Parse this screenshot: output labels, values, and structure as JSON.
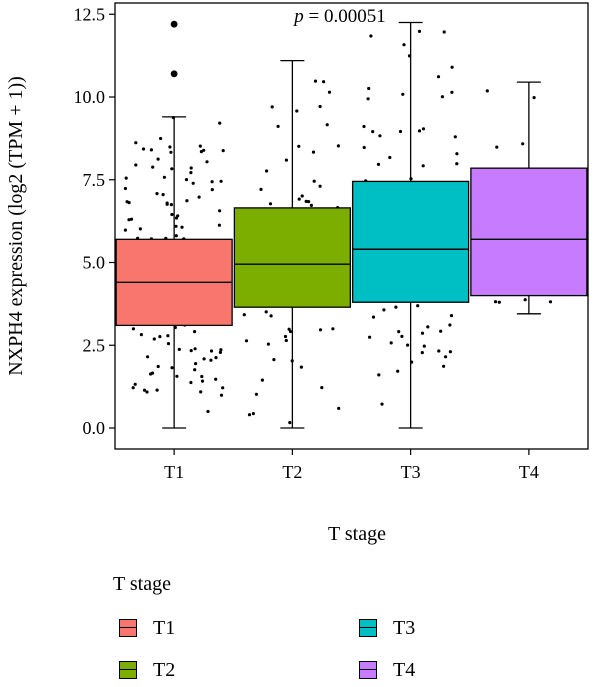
{
  "chart_data": {
    "type": "box",
    "title": "",
    "xlabel": "T stage",
    "ylabel": "NXPH4 expression (log2 (TPM + 1))",
    "annotation": {
      "p_label": "p",
      "p_value": "= 0.00051"
    },
    "categories": [
      "T1",
      "T2",
      "T3",
      "T4"
    ],
    "ylim": [
      -0.6,
      12.8
    ],
    "yticks": [
      0.0,
      2.5,
      5.0,
      7.5,
      10.0,
      12.5
    ],
    "ytick_labels": [
      "0.0",
      "2.5",
      "5.0",
      "7.5",
      "10.0",
      "12.5"
    ],
    "colors": [
      "#F8766D",
      "#7CAE00",
      "#00BFC4",
      "#C77CFF"
    ],
    "boxes": [
      {
        "name": "T1",
        "whisker_low": 0.0,
        "q1": 3.1,
        "median": 4.4,
        "q3": 5.7,
        "whisker_high": 9.4,
        "outliers": [
          10.7,
          12.2
        ]
      },
      {
        "name": "T2",
        "whisker_low": 0.0,
        "q1": 3.65,
        "median": 4.95,
        "q3": 6.65,
        "whisker_high": 11.1,
        "outliers": []
      },
      {
        "name": "T3",
        "whisker_low": 0.0,
        "q1": 3.8,
        "median": 5.4,
        "q3": 7.45,
        "whisker_high": 12.25,
        "outliers": []
      },
      {
        "name": "T4",
        "whisker_low": 3.45,
        "q1": 4.0,
        "median": 5.7,
        "q3": 7.85,
        "whisker_high": 10.45,
        "outliers": []
      }
    ],
    "legend": {
      "title": "T stage",
      "placement": "bottom",
      "entries": [
        "T1",
        "T2",
        "T3",
        "T4"
      ]
    }
  }
}
